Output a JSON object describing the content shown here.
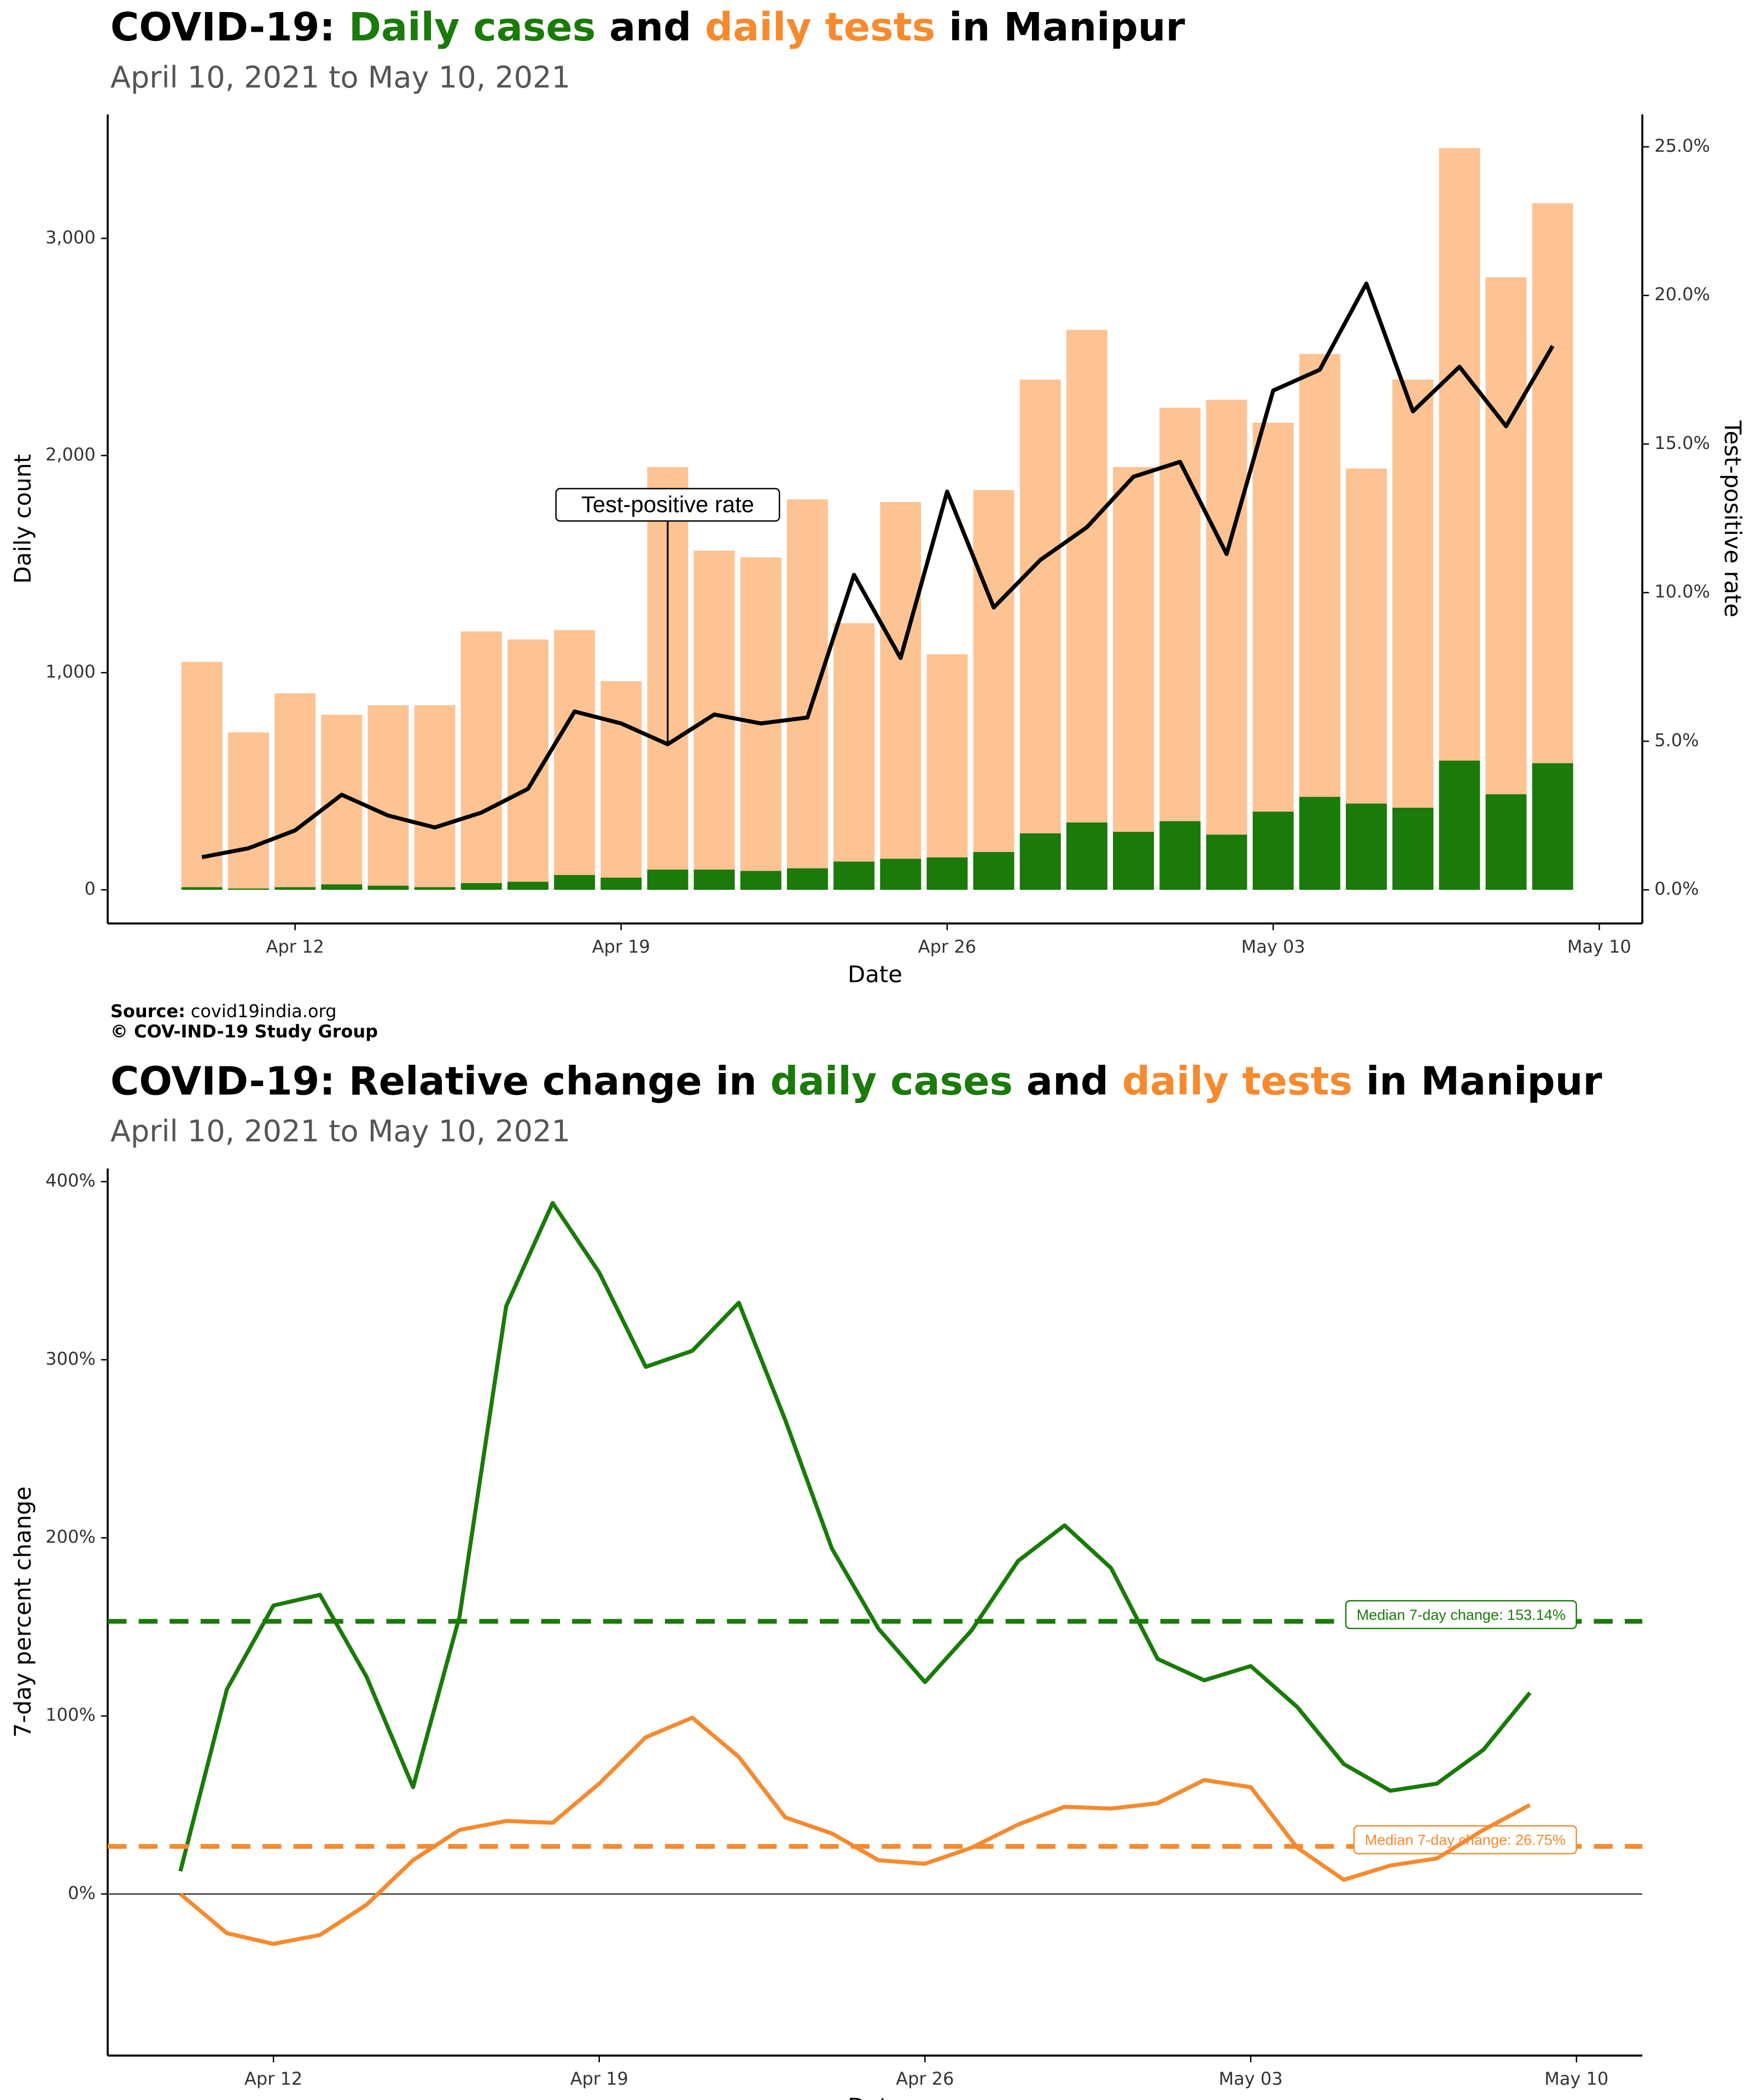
{
  "chart_data": [
    {
      "type": "bar",
      "title_parts": [
        {
          "text": "COVID-19: ",
          "color": "#000000"
        },
        {
          "text": "Daily cases",
          "color": "#1a7a0a"
        },
        {
          "text": " and ",
          "color": "#000000"
        },
        {
          "text": "daily tests",
          "color": "#f58a2e"
        },
        {
          "text": " in Manipur",
          "color": "#000000"
        }
      ],
      "subtitle": "April 10, 2021 to May 10, 2021",
      "x_label": "Date",
      "y_label": "Daily count",
      "y2_label": "Test-positive rate",
      "categories": [
        null,
        null,
        "Apr 12",
        null,
        null,
        null,
        null,
        null,
        null,
        "Apr 19",
        null,
        null,
        null,
        null,
        null,
        null,
        "Apr 26",
        null,
        null,
        null,
        null,
        null,
        null,
        "May 03",
        null,
        null,
        null,
        null,
        null,
        null,
        "May 10"
      ],
      "series": [
        {
          "name": "daily tests",
          "color": "#fdc393",
          "values": [
            1050,
            725,
            905,
            806,
            850,
            850,
            1190,
            1153,
            1196,
            961,
            1947,
            1562,
            1531,
            1798,
            1228,
            1786,
            1085,
            1841,
            2350,
            2579,
            1947,
            2220,
            2257,
            2151,
            2468,
            1940,
            2350,
            3416,
            2821,
            3162,
            null
          ]
        },
        {
          "name": "daily cases",
          "color": "#1a7a0a",
          "values": [
            12,
            6,
            12,
            25,
            19,
            12,
            31,
            37,
            68,
            56,
            93,
            93,
            87,
            99,
            130,
            143,
            149,
            174,
            260,
            310,
            267,
            316,
            254,
            360,
            428,
            397,
            378,
            595,
            440,
            583,
            null
          ]
        },
        {
          "name": "Test-positive rate",
          "type": "line",
          "axis": "y2",
          "color": "#000000",
          "values": [
            1.1,
            1.4,
            2.0,
            3.2,
            2.5,
            2.1,
            2.6,
            3.4,
            6.0,
            5.6,
            4.9,
            5.9,
            5.6,
            5.8,
            10.6,
            7.8,
            13.4,
            9.5,
            11.1,
            12.2,
            13.9,
            14.4,
            11.3,
            16.8,
            17.5,
            20.4,
            16.1,
            17.6,
            15.6,
            18.3,
            null
          ]
        }
      ],
      "annotation": {
        "text": "Test-positive rate",
        "index": 10
      },
      "ylim": [
        -155,
        3571
      ],
      "yticks": [
        0,
        {
          "value": 1000,
          "label": "1,000"
        },
        {
          "value": 2000,
          "label": "2,000"
        },
        {
          "value": 3000,
          "label": "3,000"
        }
      ],
      "y2lim": [
        -1.13,
        26.09
      ],
      "y2ticks": [
        {
          "value": 0,
          "label": "0.0%"
        },
        {
          "value": 5,
          "label": "5.0%"
        },
        {
          "value": 10,
          "label": "10.0%"
        },
        {
          "value": 15,
          "label": "15.0%"
        },
        {
          "value": 20,
          "label": "20.0%"
        },
        {
          "value": 25,
          "label": "25.0%"
        }
      ],
      "source_label": "Source:",
      "source": "covid19india.org",
      "credit": "© COV-IND-19 Study Group"
    },
    {
      "type": "line",
      "title_parts": [
        {
          "text": "COVID-19: Relative change in ",
          "color": "#000000"
        },
        {
          "text": "daily cases",
          "color": "#1a7a0a"
        },
        {
          "text": " and ",
          "color": "#000000"
        },
        {
          "text": "daily tests",
          "color": "#f58a2e"
        },
        {
          "text": " in Manipur",
          "color": "#000000"
        }
      ],
      "subtitle": "April 10, 2021 to May 10, 2021",
      "x_label": "Date",
      "y_label": "7-day percent change",
      "categories": [
        null,
        null,
        "Apr 12",
        null,
        null,
        null,
        null,
        null,
        null,
        "Apr 19",
        null,
        null,
        null,
        null,
        null,
        null,
        "Apr 26",
        null,
        null,
        null,
        null,
        null,
        null,
        "May 03",
        null,
        null,
        null,
        null,
        null,
        null,
        "May 10"
      ],
      "series": [
        {
          "name": "daily cases",
          "color": "#1a7a0a",
          "median": 153.14,
          "median_label": "Median 7-day change: 153.14%",
          "values": [
            12.8,
            115,
            162,
            168,
            122,
            60,
            156,
            330,
            388,
            349,
            296,
            305,
            332,
            266,
            194,
            149,
            119,
            148,
            187,
            207,
            183,
            132,
            120,
            128,
            105,
            73,
            58,
            62,
            81,
            113,
            null
          ]
        },
        {
          "name": "daily tests",
          "color": "#f58a2e",
          "median": 26.75,
          "median_label": "Median 7-day change: 26.75%",
          "values": [
            0,
            -22,
            -28,
            -23,
            -6,
            19,
            36,
            41,
            40,
            62,
            88,
            99,
            77,
            43,
            34,
            19,
            17,
            26,
            39,
            49,
            48,
            51,
            64,
            60,
            26,
            8,
            16,
            20,
            36,
            50,
            null
          ]
        }
      ],
      "ylim": [
        -90.7,
        407.4
      ],
      "yticks": [
        {
          "value": 0,
          "label": "0%"
        },
        {
          "value": 100,
          "label": "100%"
        },
        {
          "value": 200,
          "label": "200%"
        },
        {
          "value": 300,
          "label": "300%"
        },
        {
          "value": 400,
          "label": "400%"
        }
      ],
      "source_label": "Source:",
      "source": "covid19india.org",
      "credit": "© COV-IND-19 Study Group"
    }
  ]
}
